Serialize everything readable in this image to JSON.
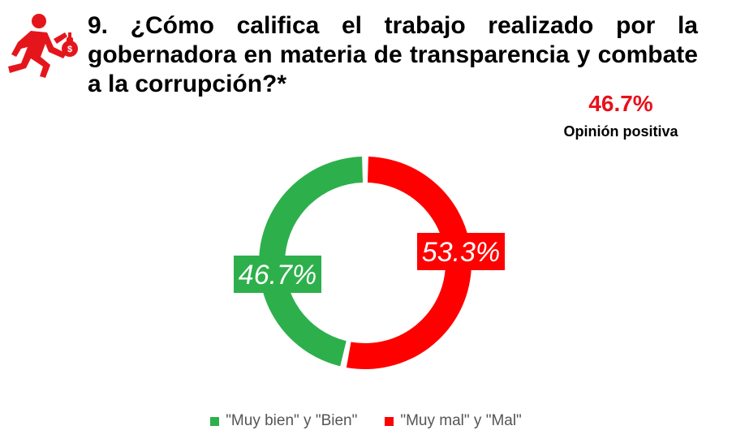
{
  "header": {
    "title": "9. ¿Cómo califica el trabajo realizado por la gobernadora en materia de transparencia y combate a la corrupción?*",
    "logo_icon": "running-thief-icon"
  },
  "summary": {
    "value": "46.7%",
    "label": "Opinión positiva",
    "color": "#e8101a"
  },
  "chart_data": {
    "type": "pie",
    "donut": true,
    "title": "",
    "slices": [
      {
        "name": "\"Muy bien\" y \"Bien\"",
        "value": 46.7,
        "label": "46.7%",
        "color": "#2db04b"
      },
      {
        "name": "\"Muy mal\" y \"Mal\"",
        "value": 53.3,
        "label": "53.3%",
        "color": "#fe0000"
      }
    ],
    "legend_placement": "bottom"
  }
}
